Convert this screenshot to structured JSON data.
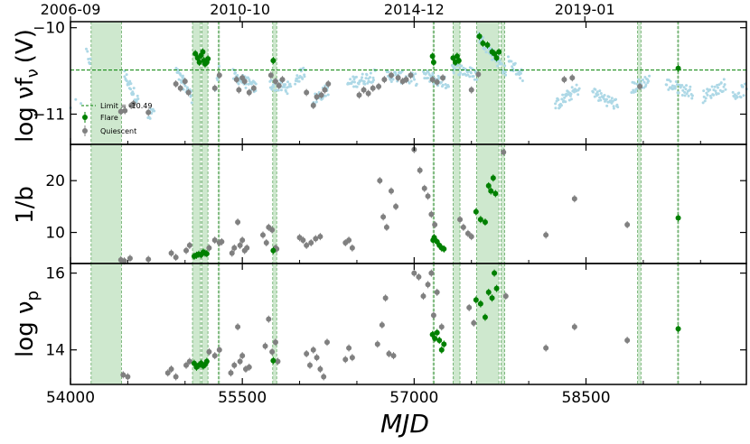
{
  "chart_data": {
    "type": "scatter",
    "xlabel": "MJD",
    "xlim": [
      54000,
      59900
    ],
    "x_ticks": [
      "54000",
      "55500",
      "57000",
      "58500"
    ],
    "x_tick_values": [
      54000,
      55500,
      57000,
      58500
    ],
    "top_dates": [
      {
        "label": "2006-09",
        "mjd": 54000
      },
      {
        "label": "2010-10",
        "mjd": 55480
      },
      {
        "label": "2014-12",
        "mjd": 57000
      },
      {
        "label": "2019-01",
        "mjd": 58490
      }
    ],
    "flare_bands": [
      [
        54180,
        54445
      ],
      [
        55065,
        55135
      ],
      [
        55146,
        55200
      ],
      [
        55290,
        55300
      ],
      [
        55765,
        55800
      ],
      [
        57165,
        57175
      ],
      [
        57340,
        57400
      ],
      [
        57545,
        57740
      ],
      [
        57758,
        57790
      ],
      [
        58950,
        58980
      ],
      [
        59300,
        59308
      ]
    ],
    "colors": {
      "flare": "#008000",
      "quiescent": "#808080",
      "lightcurve": "#add8e6",
      "band": "#bde0bd",
      "limit": "#008000"
    },
    "panels": [
      {
        "id": "flux",
        "ylabel": "log νf_ν (V)",
        "ylabel_main": "log νf",
        "ylabel_sub": "ν",
        "ylabel_tail": "(V)",
        "ylim": [
          -11.35,
          -9.93
        ],
        "y_tick_values": [
          -10,
          -11
        ],
        "y_ticks": [
          "−10",
          "−11"
        ],
        "limit_value": -10.49,
        "legend": {
          "limit": "Limit = -10.49",
          "flare": "Flare",
          "quiescent": "Quiescent"
        },
        "lightcurve_segments": [
          {
            "x0": 54000,
            "x1": 54090,
            "y0": -10.9,
            "y1": -10.9,
            "n": 3
          },
          {
            "x0": 54140,
            "x1": 54175,
            "y0": -10.3,
            "y1": -10.4,
            "n": 6
          },
          {
            "x0": 54470,
            "x1": 54590,
            "y0": -10.55,
            "y1": -10.85,
            "n": 28
          },
          {
            "x0": 54680,
            "x1": 54730,
            "y0": -11.05,
            "y1": -10.95,
            "n": 8
          },
          {
            "x0": 54920,
            "x1": 55060,
            "y0": -10.5,
            "y1": -10.8,
            "n": 34
          },
          {
            "x0": 55260,
            "x1": 55300,
            "y0": -10.7,
            "y1": -10.5,
            "n": 8
          },
          {
            "x0": 55420,
            "x1": 55620,
            "y0": -10.55,
            "y1": -10.7,
            "n": 40
          },
          {
            "x0": 55740,
            "x1": 55920,
            "y0": -10.65,
            "y1": -10.7,
            "n": 36
          },
          {
            "x0": 55960,
            "x1": 56050,
            "y0": -10.6,
            "y1": -10.5,
            "n": 18
          },
          {
            "x0": 56110,
            "x1": 56260,
            "y0": -10.85,
            "y1": -10.7,
            "n": 30
          },
          {
            "x0": 56420,
            "x1": 56660,
            "y0": -10.65,
            "y1": -10.55,
            "n": 44
          },
          {
            "x0": 56760,
            "x1": 57020,
            "y0": -10.55,
            "y1": -10.6,
            "n": 44
          },
          {
            "x0": 57080,
            "x1": 57300,
            "y0": -10.55,
            "y1": -10.65,
            "n": 40
          },
          {
            "x0": 57330,
            "x1": 57550,
            "y0": -10.45,
            "y1": -10.55,
            "n": 40
          },
          {
            "x0": 57560,
            "x1": 57800,
            "y0": -10.1,
            "y1": -10.5,
            "n": 44
          },
          {
            "x0": 57820,
            "x1": 57950,
            "y0": -10.4,
            "y1": -10.55,
            "n": 24
          },
          {
            "x0": 58230,
            "x1": 58440,
            "y0": -10.9,
            "y1": -10.7,
            "n": 40
          },
          {
            "x0": 58560,
            "x1": 58780,
            "y0": -10.75,
            "y1": -10.9,
            "n": 40
          },
          {
            "x0": 58900,
            "x1": 59050,
            "y0": -10.7,
            "y1": -10.6,
            "n": 30
          },
          {
            "x0": 59200,
            "x1": 59430,
            "y0": -10.65,
            "y1": -10.75,
            "n": 40
          },
          {
            "x0": 59520,
            "x1": 59720,
            "y0": -10.8,
            "y1": -10.65,
            "n": 34
          },
          {
            "x0": 59780,
            "x1": 59900,
            "y0": -10.8,
            "y1": -10.7,
            "n": 18
          }
        ],
        "flare": [
          [
            55090,
            -10.3
          ],
          [
            55110,
            -10.35
          ],
          [
            55125,
            -10.4
          ],
          [
            55140,
            -10.32
          ],
          [
            55155,
            -10.28
          ],
          [
            55165,
            -10.38
          ],
          [
            55175,
            -10.42
          ],
          [
            55190,
            -10.4
          ],
          [
            55200,
            -10.36
          ],
          [
            55770,
            -10.38
          ],
          [
            57160,
            -10.33
          ],
          [
            57170,
            -10.4
          ],
          [
            57340,
            -10.35
          ],
          [
            57360,
            -10.4
          ],
          [
            57375,
            -10.33
          ],
          [
            57390,
            -10.38
          ],
          [
            57570,
            -10.1
          ],
          [
            57600,
            -10.18
          ],
          [
            57640,
            -10.2
          ],
          [
            57680,
            -10.28
          ],
          [
            57700,
            -10.3
          ],
          [
            57720,
            -10.35
          ],
          [
            57740,
            -10.28
          ],
          [
            59305,
            -10.47
          ]
        ],
        "quiescent": [
          [
            54440,
            -10.97
          ],
          [
            54475,
            -10.96
          ],
          [
            54530,
            -10.9
          ],
          [
            54550,
            -10.88
          ],
          [
            54680,
            -10.98
          ],
          [
            54920,
            -10.65
          ],
          [
            54960,
            -10.7
          ],
          [
            55000,
            -10.62
          ],
          [
            55030,
            -10.75
          ],
          [
            55260,
            -10.7
          ],
          [
            55300,
            -10.55
          ],
          [
            55450,
            -10.6
          ],
          [
            55470,
            -10.72
          ],
          [
            55500,
            -10.58
          ],
          [
            55520,
            -10.62
          ],
          [
            55560,
            -10.75
          ],
          [
            55600,
            -10.7
          ],
          [
            55750,
            -10.55
          ],
          [
            55790,
            -10.62
          ],
          [
            55820,
            -10.67
          ],
          [
            55850,
            -10.6
          ],
          [
            56060,
            -10.75
          ],
          [
            56120,
            -10.9
          ],
          [
            56150,
            -10.8
          ],
          [
            56190,
            -10.78
          ],
          [
            56220,
            -10.72
          ],
          [
            56250,
            -10.65
          ],
          [
            56520,
            -10.78
          ],
          [
            56560,
            -10.72
          ],
          [
            56600,
            -10.76
          ],
          [
            56640,
            -10.7
          ],
          [
            56690,
            -10.68
          ],
          [
            56740,
            -10.6
          ],
          [
            56800,
            -10.55
          ],
          [
            56860,
            -10.58
          ],
          [
            56900,
            -10.62
          ],
          [
            56930,
            -10.6
          ],
          [
            56970,
            -10.55
          ],
          [
            57160,
            -10.6
          ],
          [
            57200,
            -10.63
          ],
          [
            57250,
            -10.58
          ],
          [
            57500,
            -10.72
          ],
          [
            57560,
            -10.54
          ],
          [
            58310,
            -10.6
          ],
          [
            58380,
            -10.58
          ],
          [
            58970,
            -10.68
          ]
        ]
      },
      {
        "id": "curvature",
        "ylabel": "1/b",
        "ylim": [
          4,
          27
        ],
        "y_tick_values": [
          10,
          20
        ],
        "y_ticks": [
          "10",
          "20"
        ],
        "flare": [
          [
            55080,
            5.4
          ],
          [
            55100,
            5.6
          ],
          [
            55120,
            5.8
          ],
          [
            55140,
            5.7
          ],
          [
            55160,
            6.2
          ],
          [
            55175,
            6.0
          ],
          [
            55190,
            5.9
          ],
          [
            55770,
            6.5
          ],
          [
            57165,
            8.5
          ],
          [
            57175,
            9.0
          ],
          [
            57200,
            8.2
          ],
          [
            57220,
            7.5
          ],
          [
            57240,
            7.0
          ],
          [
            57260,
            6.8
          ],
          [
            57540,
            14.0
          ],
          [
            57580,
            12.5
          ],
          [
            57620,
            12.0
          ],
          [
            57650,
            19.0
          ],
          [
            57670,
            18.0
          ],
          [
            57690,
            20.5
          ],
          [
            57710,
            17.5
          ],
          [
            59305,
            12.8
          ]
        ],
        "quiescent": [
          [
            54440,
            4.7
          ],
          [
            54470,
            4.5
          ],
          [
            54520,
            5.0
          ],
          [
            54680,
            4.8
          ],
          [
            54880,
            6.0
          ],
          [
            54920,
            5.2
          ],
          [
            55010,
            6.5
          ],
          [
            55040,
            7.5
          ],
          [
            55210,
            7.0
          ],
          [
            55260,
            8.5
          ],
          [
            55300,
            8.0
          ],
          [
            55320,
            8.2
          ],
          [
            55410,
            6.0
          ],
          [
            55430,
            7.0
          ],
          [
            55460,
            12.0
          ],
          [
            55480,
            7.5
          ],
          [
            55500,
            8.5
          ],
          [
            55520,
            6.5
          ],
          [
            55540,
            7.0
          ],
          [
            55680,
            9.5
          ],
          [
            55710,
            8.0
          ],
          [
            55730,
            11.0
          ],
          [
            55760,
            10.5
          ],
          [
            55790,
            7.0
          ],
          [
            55800,
            6.8
          ],
          [
            56000,
            9.0
          ],
          [
            56030,
            8.5
          ],
          [
            56060,
            7.5
          ],
          [
            56100,
            8.0
          ],
          [
            56140,
            8.8
          ],
          [
            56180,
            9.2
          ],
          [
            56400,
            8.0
          ],
          [
            56430,
            8.5
          ],
          [
            56460,
            7.0
          ],
          [
            56700,
            20.0
          ],
          [
            56730,
            13.0
          ],
          [
            56760,
            11.0
          ],
          [
            56800,
            18.0
          ],
          [
            56840,
            15.0
          ],
          [
            57000,
            26.0
          ],
          [
            57050,
            22.0
          ],
          [
            57090,
            18.5
          ],
          [
            57120,
            17.0
          ],
          [
            57150,
            13.5
          ],
          [
            57180,
            11.5
          ],
          [
            57400,
            12.5
          ],
          [
            57430,
            11.0
          ],
          [
            57470,
            9.8
          ],
          [
            57500,
            9.2
          ],
          [
            57780,
            25.5
          ],
          [
            58150,
            9.5
          ],
          [
            58400,
            16.5
          ],
          [
            58860,
            11.5
          ]
        ]
      },
      {
        "id": "peak",
        "ylabel": "log ν_p",
        "ylabel_main": "log ν",
        "ylabel_sub": "p",
        "ylim": [
          13.1,
          16.25
        ],
        "y_tick_values": [
          14,
          16
        ],
        "y_ticks": [
          "14",
          "16"
        ],
        "flare": [
          [
            55080,
            13.65
          ],
          [
            55100,
            13.55
          ],
          [
            55120,
            13.6
          ],
          [
            55140,
            13.65
          ],
          [
            55160,
            13.58
          ],
          [
            55175,
            13.62
          ],
          [
            55190,
            13.7
          ],
          [
            55770,
            13.72
          ],
          [
            57160,
            14.4
          ],
          [
            57180,
            14.3
          ],
          [
            57200,
            14.45
          ],
          [
            57220,
            14.25
          ],
          [
            57240,
            14.0
          ],
          [
            57260,
            14.15
          ],
          [
            57540,
            15.3
          ],
          [
            57580,
            15.2
          ],
          [
            57620,
            14.85
          ],
          [
            57650,
            15.5
          ],
          [
            57680,
            15.35
          ],
          [
            57700,
            16.0
          ],
          [
            57720,
            15.6
          ],
          [
            59305,
            14.55
          ]
        ],
        "quiescent": [
          [
            54460,
            13.35
          ],
          [
            54500,
            13.3
          ],
          [
            54850,
            13.4
          ],
          [
            54880,
            13.5
          ],
          [
            54920,
            13.3
          ],
          [
            55010,
            13.6
          ],
          [
            55040,
            13.7
          ],
          [
            55210,
            13.95
          ],
          [
            55260,
            13.85
          ],
          [
            55300,
            14.0
          ],
          [
            55400,
            13.4
          ],
          [
            55430,
            13.6
          ],
          [
            55460,
            14.6
          ],
          [
            55480,
            13.7
          ],
          [
            55500,
            13.85
          ],
          [
            55530,
            13.5
          ],
          [
            55560,
            13.55
          ],
          [
            55700,
            14.1
          ],
          [
            55730,
            14.8
          ],
          [
            55760,
            13.95
          ],
          [
            55790,
            14.2
          ],
          [
            55810,
            13.7
          ],
          [
            56060,
            13.9
          ],
          [
            56090,
            13.6
          ],
          [
            56120,
            14.0
          ],
          [
            56150,
            13.8
          ],
          [
            56180,
            13.5
          ],
          [
            56210,
            13.3
          ],
          [
            56240,
            14.2
          ],
          [
            56400,
            13.75
          ],
          [
            56430,
            14.05
          ],
          [
            56460,
            13.8
          ],
          [
            56680,
            14.15
          ],
          [
            56720,
            14.65
          ],
          [
            56750,
            15.35
          ],
          [
            56780,
            13.9
          ],
          [
            56820,
            13.85
          ],
          [
            57000,
            16.0
          ],
          [
            57040,
            15.9
          ],
          [
            57080,
            15.4
          ],
          [
            57120,
            15.7
          ],
          [
            57150,
            16.0
          ],
          [
            57170,
            14.9
          ],
          [
            57200,
            15.5
          ],
          [
            57240,
            14.6
          ],
          [
            57480,
            15.1
          ],
          [
            57520,
            14.7
          ],
          [
            57800,
            15.4
          ],
          [
            58150,
            14.05
          ],
          [
            58400,
            14.6
          ],
          [
            58860,
            14.25
          ]
        ]
      }
    ]
  }
}
